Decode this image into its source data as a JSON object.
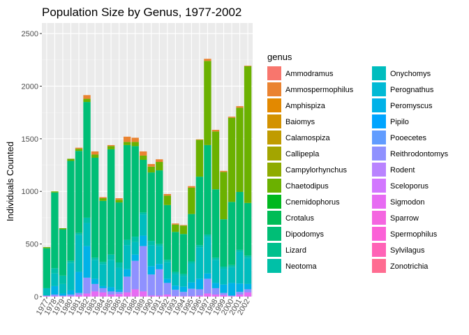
{
  "chart_data": {
    "type": "bar",
    "stacked": true,
    "title": "Population Size by Genus, 1977-2002",
    "xlabel": "",
    "ylabel": "Individuals Counted",
    "ylim": [
      0,
      2600
    ],
    "yticks": [
      0,
      500,
      1000,
      1500,
      2000,
      2500
    ],
    "grid": true,
    "legend": {
      "title": "genus",
      "position": "right",
      "columns": 2
    },
    "categories": [
      "1977",
      "1978",
      "1979",
      "1980",
      "1981",
      "1982",
      "1983",
      "1984",
      "1985",
      "1986",
      "1987",
      "1988",
      "1989",
      "1990",
      "1991",
      "1992",
      "1993",
      "1994",
      "1995",
      "1996",
      "1997",
      "1998",
      "1999",
      "2000",
      "2001",
      "2002"
    ],
    "series": [
      {
        "name": "Ammodramus",
        "color": "#F8766D",
        "values": [
          0,
          0,
          0,
          0,
          0,
          0,
          0,
          0,
          0,
          0,
          0,
          0,
          0,
          0,
          0,
          0,
          0,
          0,
          0,
          0,
          0,
          0,
          0,
          0,
          0,
          0
        ]
      },
      {
        "name": "Ammospermophilus",
        "color": "#EA8331",
        "values": [
          0,
          0,
          0,
          0,
          10,
          35,
          30,
          10,
          10,
          15,
          50,
          40,
          40,
          25,
          25,
          15,
          10,
          5,
          15,
          5,
          20,
          15,
          10,
          10,
          15,
          5
        ]
      },
      {
        "name": "Amphispiza",
        "color": "#E38900",
        "values": [
          0,
          0,
          0,
          0,
          0,
          0,
          0,
          0,
          0,
          0,
          0,
          0,
          0,
          0,
          0,
          0,
          0,
          0,
          0,
          0,
          0,
          0,
          0,
          0,
          0,
          0
        ]
      },
      {
        "name": "Baiomys",
        "color": "#D39200",
        "values": [
          0,
          0,
          0,
          0,
          0,
          0,
          0,
          0,
          0,
          0,
          0,
          0,
          0,
          0,
          0,
          0,
          0,
          0,
          0,
          0,
          0,
          0,
          0,
          0,
          0,
          0
        ]
      },
      {
        "name": "Calamospiza",
        "color": "#C09B00",
        "values": [
          0,
          0,
          0,
          0,
          0,
          0,
          0,
          0,
          0,
          0,
          0,
          0,
          0,
          0,
          0,
          0,
          0,
          0,
          0,
          0,
          0,
          0,
          0,
          0,
          0,
          0
        ]
      },
      {
        "name": "Callipepla",
        "color": "#A3A500",
        "values": [
          0,
          0,
          0,
          0,
          0,
          0,
          0,
          0,
          0,
          0,
          0,
          0,
          0,
          0,
          0,
          0,
          0,
          0,
          0,
          0,
          0,
          0,
          0,
          0,
          0,
          0
        ]
      },
      {
        "name": "Campylorhynchus",
        "color": "#8EAB00",
        "values": [
          0,
          0,
          0,
          0,
          0,
          0,
          0,
          0,
          0,
          0,
          0,
          0,
          0,
          0,
          0,
          0,
          0,
          0,
          0,
          0,
          0,
          0,
          0,
          0,
          0,
          0
        ]
      },
      {
        "name": "Chaetodipus",
        "color": "#6BB100",
        "values": [
          10,
          10,
          10,
          20,
          20,
          30,
          30,
          25,
          30,
          25,
          30,
          40,
          40,
          55,
          80,
          90,
          70,
          80,
          250,
          350,
          800,
          550,
          450,
          800,
          800,
          1300
        ]
      },
      {
        "name": "Cnemidophorus",
        "color": "#00B81F",
        "values": [
          0,
          0,
          0,
          0,
          0,
          0,
          0,
          0,
          0,
          0,
          0,
          0,
          0,
          0,
          0,
          0,
          0,
          0,
          0,
          0,
          0,
          0,
          0,
          0,
          0,
          0
        ]
      },
      {
        "name": "Crotalus",
        "color": "#00BC56",
        "values": [
          0,
          0,
          0,
          0,
          0,
          0,
          0,
          0,
          0,
          0,
          0,
          0,
          0,
          0,
          0,
          0,
          0,
          0,
          0,
          0,
          0,
          0,
          0,
          0,
          0,
          0
        ]
      },
      {
        "name": "Dipodomys",
        "color": "#00BE76",
        "values": [
          380,
          720,
          440,
          950,
          780,
          1100,
          950,
          580,
          1000,
          570,
          900,
          860,
          500,
          650,
          700,
          520,
          380,
          380,
          450,
          650,
          850,
          650,
          450,
          600,
          550,
          500
        ]
      },
      {
        "name": "Lizard",
        "color": "#00C08D",
        "values": [
          0,
          0,
          0,
          0,
          0,
          0,
          0,
          0,
          0,
          0,
          0,
          0,
          0,
          0,
          0,
          0,
          0,
          0,
          0,
          0,
          0,
          0,
          0,
          0,
          0,
          0
        ]
      },
      {
        "name": "Neotoma",
        "color": "#00C0A7",
        "values": [
          0,
          50,
          80,
          20,
          20,
          50,
          20,
          20,
          50,
          50,
          50,
          50,
          20,
          40,
          20,
          20,
          20,
          20,
          20,
          20,
          20,
          20,
          20,
          20,
          20,
          20
        ]
      },
      {
        "name": "Onychomys",
        "color": "#00BDBE",
        "values": [
          70,
          120,
          90,
          260,
          350,
          220,
          180,
          210,
          260,
          210,
          230,
          120,
          200,
          200,
          170,
          160,
          110,
          100,
          180,
          300,
          350,
          220,
          150,
          150,
          300,
          250
        ]
      },
      {
        "name": "Perognathus",
        "color": "#00BAD5",
        "values": [
          0,
          0,
          0,
          0,
          0,
          0,
          0,
          0,
          0,
          0,
          0,
          0,
          0,
          0,
          0,
          0,
          0,
          0,
          0,
          0,
          0,
          0,
          0,
          0,
          0,
          0
        ]
      },
      {
        "name": "Peromyscus",
        "color": "#00B2E8",
        "values": [
          0,
          80,
          20,
          40,
          200,
          300,
          50,
          20,
          40,
          20,
          70,
          60,
          100,
          80,
          50,
          40,
          40,
          50,
          60,
          100,
          50,
          50,
          80,
          120,
          80,
          50
        ]
      },
      {
        "name": "Pipilo",
        "color": "#00A5FF",
        "values": [
          0,
          0,
          0,
          0,
          0,
          0,
          0,
          0,
          0,
          0,
          0,
          0,
          0,
          0,
          0,
          0,
          0,
          0,
          0,
          0,
          0,
          0,
          0,
          0,
          0,
          0
        ]
      },
      {
        "name": "Pooecetes",
        "color": "#619CFF",
        "values": [
          0,
          0,
          0,
          0,
          0,
          0,
          0,
          0,
          0,
          0,
          0,
          0,
          0,
          0,
          0,
          0,
          0,
          0,
          0,
          0,
          0,
          0,
          0,
          0,
          0,
          0
        ]
      },
      {
        "name": "Reithrodontomys",
        "color": "#8F91FF",
        "values": [
          5,
          15,
          5,
          15,
          20,
          150,
          70,
          40,
          30,
          20,
          150,
          270,
          430,
          200,
          250,
          110,
          60,
          40,
          70,
          60,
          140,
          60,
          20,
          5,
          25,
          30
        ]
      },
      {
        "name": "Rodent",
        "color": "#B983FF",
        "values": [
          0,
          0,
          0,
          0,
          0,
          0,
          0,
          0,
          0,
          0,
          0,
          0,
          0,
          0,
          0,
          0,
          0,
          0,
          0,
          0,
          0,
          0,
          0,
          0,
          0,
          0
        ]
      },
      {
        "name": "Sceloporus",
        "color": "#D277FF",
        "values": [
          0,
          0,
          0,
          0,
          0,
          0,
          0,
          0,
          0,
          0,
          0,
          0,
          0,
          0,
          0,
          0,
          0,
          0,
          0,
          0,
          0,
          0,
          0,
          0,
          0,
          0
        ]
      },
      {
        "name": "Sigmodon",
        "color": "#E76BF3",
        "values": [
          5,
          5,
          5,
          5,
          15,
          30,
          50,
          40,
          20,
          25,
          40,
          70,
          50,
          10,
          10,
          20,
          5,
          5,
          5,
          10,
          30,
          20,
          15,
          5,
          20,
          40
        ]
      },
      {
        "name": "Sparrow",
        "color": "#F465E0",
        "values": [
          0,
          0,
          0,
          0,
          0,
          0,
          0,
          0,
          0,
          0,
          0,
          0,
          0,
          0,
          0,
          0,
          0,
          0,
          0,
          0,
          0,
          0,
          0,
          0,
          0,
          0
        ]
      },
      {
        "name": "Spermophilus",
        "color": "#FB61D7",
        "values": [
          0,
          0,
          0,
          0,
          0,
          0,
          0,
          0,
          0,
          0,
          0,
          0,
          0,
          0,
          0,
          0,
          0,
          0,
          0,
          0,
          0,
          0,
          0,
          0,
          0,
          0
        ]
      },
      {
        "name": "Sylvilagus",
        "color": "#FF63B6",
        "values": [
          0,
          0,
          0,
          0,
          0,
          0,
          0,
          0,
          0,
          0,
          0,
          0,
          0,
          0,
          0,
          0,
          0,
          0,
          0,
          0,
          0,
          0,
          0,
          0,
          0,
          0
        ]
      },
      {
        "name": "Zonotrichia",
        "color": "#FF6C91",
        "values": [
          0,
          0,
          0,
          0,
          0,
          0,
          0,
          0,
          0,
          0,
          0,
          0,
          0,
          0,
          0,
          0,
          0,
          0,
          0,
          0,
          0,
          0,
          0,
          0,
          0,
          0
        ]
      }
    ]
  }
}
